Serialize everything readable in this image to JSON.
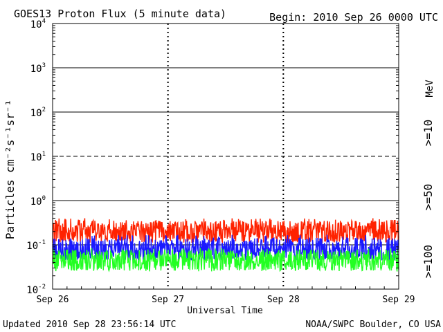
{
  "page": {
    "title": "GOES13 Proton Flux (5 minute data)",
    "begin": "Begin: 2010 Sep 26 0000 UTC",
    "updated": "Updated 2010 Sep 28 23:56:14 UTC",
    "credit": "NOAA/SWPC Boulder, CO USA"
  },
  "chart_data": {
    "type": "line",
    "title": "GOES13 Proton Flux (5 minute data)",
    "xlabel": "Universal Time",
    "ylabel": "Particles cm⁻²s⁻¹sr⁻¹",
    "y_scale": "log",
    "ylim": [
      0.01,
      10000
    ],
    "xlim": [
      "Sep 26",
      "Sep 29"
    ],
    "x_ticks": [
      "Sep 26",
      "Sep 27",
      "Sep 28",
      "Sep 29"
    ],
    "y_ticks": [
      {
        "value": 10000,
        "base": "10",
        "exp": "4"
      },
      {
        "value": 1000,
        "base": "10",
        "exp": "3"
      },
      {
        "value": 100,
        "base": "10",
        "exp": "2"
      },
      {
        "value": 10,
        "base": "10",
        "exp": "1"
      },
      {
        "value": 1,
        "base": "10",
        "exp": "0"
      },
      {
        "value": 0.1,
        "base": "10",
        "exp": "-1"
      },
      {
        "value": 0.01,
        "base": "10",
        "exp": "-2"
      }
    ],
    "unit_label": "MeV",
    "series": [
      {
        "name": ">=10",
        "color": "#ff2200",
        "x": [
          "Sep 26",
          "Sep 26 12:00",
          "Sep 27",
          "Sep 27 12:00",
          "Sep 28",
          "Sep 28 12:00",
          "Sep 29"
        ],
        "values": [
          0.2,
          0.2,
          0.2,
          0.19,
          0.2,
          0.2,
          0.2
        ],
        "noise_range": [
          0.11,
          0.4
        ]
      },
      {
        "name": ">=50",
        "color": "#1a1aff",
        "x": [
          "Sep 26",
          "Sep 26 12:00",
          "Sep 27",
          "Sep 27 12:00",
          "Sep 28",
          "Sep 28 12:00",
          "Sep 29"
        ],
        "values": [
          0.08,
          0.08,
          0.08,
          0.075,
          0.08,
          0.08,
          0.08
        ],
        "noise_range": [
          0.045,
          0.17
        ]
      },
      {
        "name": ">=100",
        "color": "#22ff22",
        "x": [
          "Sep 26",
          "Sep 26 12:00",
          "Sep 27",
          "Sep 27 12:00",
          "Sep 28",
          "Sep 28 12:00",
          "Sep 29"
        ],
        "values": [
          0.045,
          0.045,
          0.045,
          0.043,
          0.045,
          0.045,
          0.045
        ],
        "noise_range": [
          0.025,
          0.085
        ]
      }
    ],
    "reference_lines": [
      {
        "value": 10,
        "style": "dashed"
      },
      {
        "value": 0.1,
        "style": "solid"
      }
    ],
    "grid": true,
    "legend_position": "right, rotated vertical"
  }
}
